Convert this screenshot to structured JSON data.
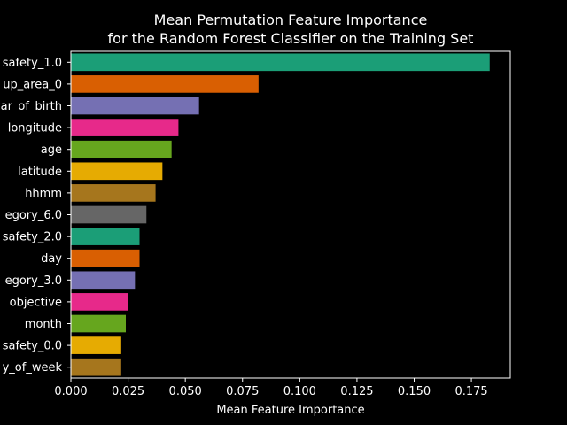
{
  "chart_data": {
    "type": "bar",
    "orientation": "horizontal",
    "title": "Mean Permutation Feature Importance",
    "subtitle": "for the Random Forest Classifier on the Training Set",
    "xlabel": "Mean Feature Importance",
    "ylabel": "",
    "xlim": [
      0.0,
      0.192
    ],
    "xticks": [
      "0.000",
      "0.025",
      "0.050",
      "0.075",
      "0.100",
      "0.125",
      "0.150",
      "0.175"
    ],
    "grid": false,
    "legend": false,
    "categories": [
      "safety_1.0",
      "up_area_0",
      "ar_of_birth",
      "longitude",
      "age",
      "latitude",
      "hhmm",
      "egory_6.0",
      "safety_2.0",
      "day",
      "egory_3.0",
      "objective",
      "month",
      "safety_0.0",
      "y_of_week"
    ],
    "values": [
      0.183,
      0.082,
      0.056,
      0.047,
      0.044,
      0.04,
      0.037,
      0.033,
      0.03,
      0.03,
      0.028,
      0.025,
      0.024,
      0.022,
      0.022
    ],
    "colors": [
      "#1b9e77",
      "#d95f02",
      "#7570b3",
      "#e7298a",
      "#66a61e",
      "#e6ab02",
      "#a6761d",
      "#666666",
      "#1b9e77",
      "#d95f02",
      "#7570b3",
      "#e7298a",
      "#66a61e",
      "#e6ab02",
      "#a6761d"
    ]
  }
}
